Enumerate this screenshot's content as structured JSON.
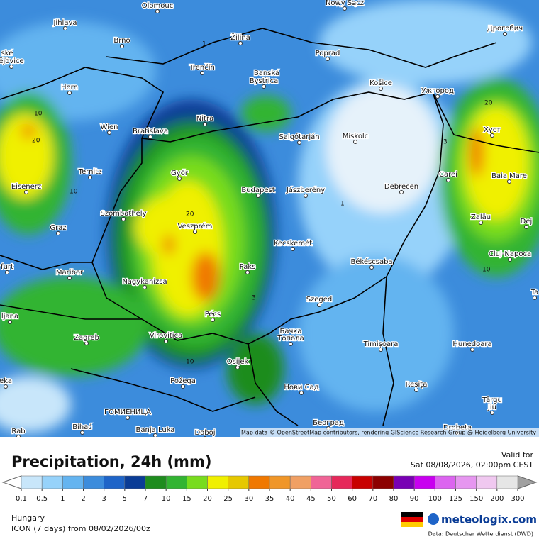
{
  "map": {
    "cities": [
      "Olomouc",
      "Nowy Sącz",
      "Jihlava",
      "Brno",
      "Žilina",
      "Дрогобич",
      "ské",
      "ějovice",
      "Poprad",
      "Trenčín",
      "Banská",
      "Bystrica",
      "Košice",
      "Ужгород",
      "Horn",
      "Nitra",
      "Wien",
      "Bratislava",
      "Salgótarján",
      "Miskolc",
      "Хуст",
      "Ternitz",
      "Győr",
      "Budapest",
      "Jászberény",
      "Debrecen",
      "Carei",
      "Baia Mare",
      "Eisenerz",
      "Szombathely",
      "Veszprém",
      "Zalău",
      "Graz",
      "Kecskemét",
      "Dej",
      "Cluj-Napoca",
      "furt",
      "Maribor",
      "Paks",
      "Békéscsaba",
      "Nagykanizsa",
      "Szeged",
      "ljana",
      "Pécs",
      "Zagreb",
      "Virovitica",
      "Бачка",
      "Топола",
      "Timișoara",
      "Hunedoara",
      "Osijek",
      "eka",
      "Požega",
      "Нови Сад",
      "Reșița",
      "ГОМИЕНИЦА",
      "Bihać",
      "Banja Luka",
      "Doboj",
      "Београд",
      "Târgu",
      "Jiu",
      "Drobeta",
      "Rab",
      "Ta"
    ],
    "contour_labels": [
      "10",
      "20",
      "10",
      "20",
      "10",
      "20",
      "1",
      "3",
      "10",
      "1",
      "3"
    ],
    "attribution": "Map data © OpenStreetMap contributors, rendering GIScience Research Group @ Heidelberg University"
  },
  "panel": {
    "title": "Precipitation, 24h (mm)",
    "valid_label": "Valid for",
    "valid_time": "Sat 08/08/2026, 02:00pm CEST",
    "region": "Hungary",
    "model": "ICON (7 days) from 08/02/2026/00z",
    "brand": "meteologix.com",
    "source": "Data: Deutscher Wetterdienst (DWD)"
  },
  "legend": {
    "ticks": [
      0.1,
      0.5,
      1,
      2,
      3,
      5,
      7,
      10,
      15,
      20,
      25,
      30,
      35,
      40,
      45,
      50,
      60,
      70,
      80,
      90,
      100,
      125,
      150,
      200,
      300
    ],
    "colors": [
      "#c8e6fa",
      "#96d2fa",
      "#64b4f0",
      "#3c8cdc",
      "#1e64c8",
      "#0a3c96",
      "#1e8c1e",
      "#32b432",
      "#78dc1e",
      "#f0f000",
      "#e6c800",
      "#f07800",
      "#f09628",
      "#f0a064",
      "#f06496",
      "#e6285a",
      "#c80000",
      "#8c0000",
      "#7800b4",
      "#c800f0",
      "#dc64f0",
      "#e696f0",
      "#f0c8f0",
      "#e6e6e6"
    ],
    "low_color": "#ffffff",
    "high_color": "#a0a0a0"
  }
}
